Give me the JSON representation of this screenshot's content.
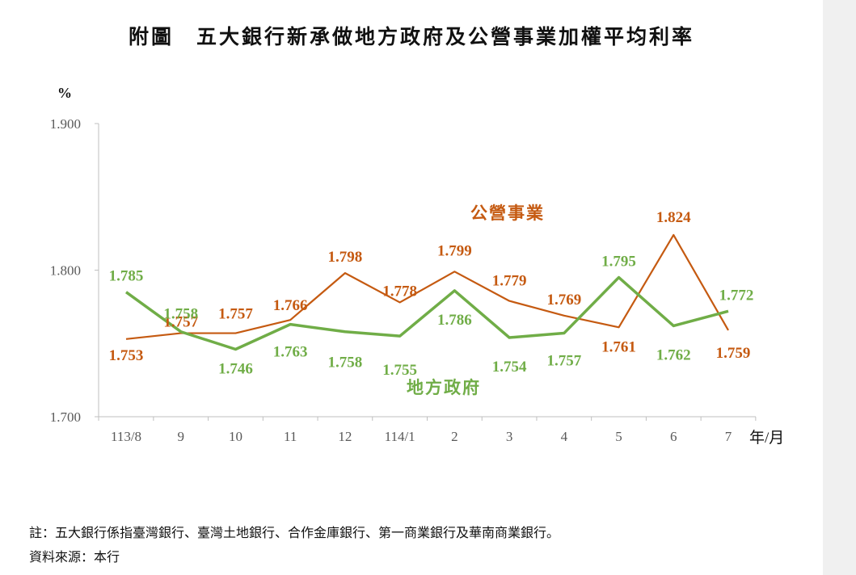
{
  "title": "附圖　五大銀行新承做地方政府及公營事業加權平均利率",
  "chart_data": {
    "type": "line",
    "ylabel": "%",
    "xlabel": "年/月",
    "ylim": [
      1.7,
      1.9
    ],
    "yticks": [
      "1.700",
      "1.800",
      "1.900"
    ],
    "categories": [
      "113/8",
      "9",
      "10",
      "11",
      "12",
      "114/1",
      "2",
      "3",
      "4",
      "5",
      "6",
      "7"
    ],
    "series": [
      {
        "name": "公營事業",
        "color": "#c55a11",
        "values": [
          1.753,
          1.757,
          1.757,
          1.766,
          1.798,
          1.778,
          1.799,
          1.779,
          1.769,
          1.761,
          1.824,
          1.759
        ],
        "labels": [
          "1.753",
          "1.757",
          "1.757",
          "1.766",
          "1.798",
          "1.778",
          "1.799",
          "1.779",
          "1.769",
          "1.761",
          "1.824",
          "1.759"
        ]
      },
      {
        "name": "地方政府",
        "color": "#70ad47",
        "values": [
          1.785,
          1.758,
          1.746,
          1.763,
          1.758,
          1.755,
          1.786,
          1.754,
          1.757,
          1.795,
          1.762,
          1.772
        ],
        "labels": [
          "1.785",
          "1.758",
          "1.746",
          "1.763",
          "1.758",
          "1.755",
          "1.786",
          "1.754",
          "1.757",
          "1.795",
          "1.762",
          "1.772"
        ]
      }
    ]
  },
  "notes": {
    "note1": "註：五大銀行係指臺灣銀行、臺灣土地銀行、合作金庫銀行、第一商業銀行及華南商業銀行。",
    "source": "資料來源：本行"
  }
}
